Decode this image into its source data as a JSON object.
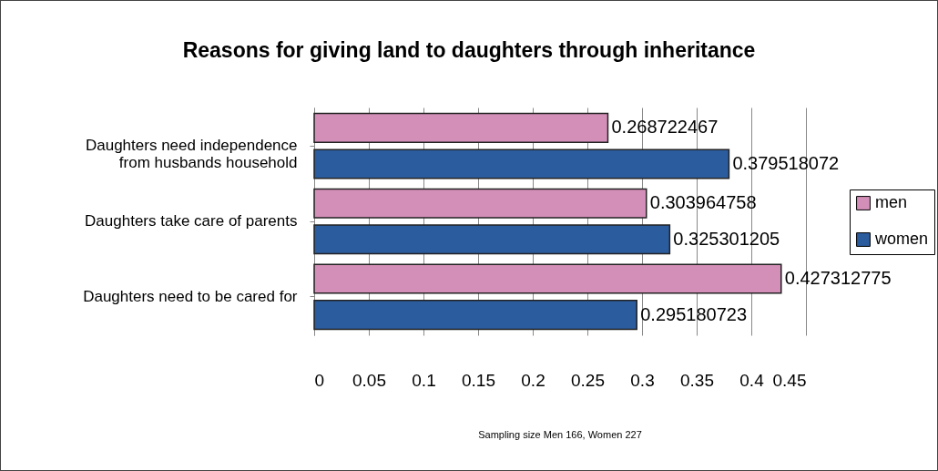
{
  "chart_data": {
    "type": "bar",
    "orientation": "horizontal",
    "title": "Reasons for giving land to daughters through inheritance",
    "categories": [
      "Daughters need independence\nfrom husbands household",
      "Daughters take care of parents",
      "Daughters need to be cared for"
    ],
    "series": [
      {
        "name": "men",
        "color": "#d48fb8",
        "values": [
          0.268722467,
          0.303964758,
          0.427312775
        ]
      },
      {
        "name": "women",
        "color": "#2b5c9e",
        "values": [
          0.379518072,
          0.325301205,
          0.295180723
        ]
      }
    ],
    "xlim": [
      0,
      0.45
    ],
    "xticks": [
      0,
      0.05,
      0.1,
      0.15,
      0.2,
      0.25,
      0.3,
      0.35,
      0.4,
      0.45
    ],
    "grid": "x",
    "legend": "right",
    "data_labels": true,
    "annotations": [
      "Sampling  size Men 166, Women 227"
    ]
  }
}
